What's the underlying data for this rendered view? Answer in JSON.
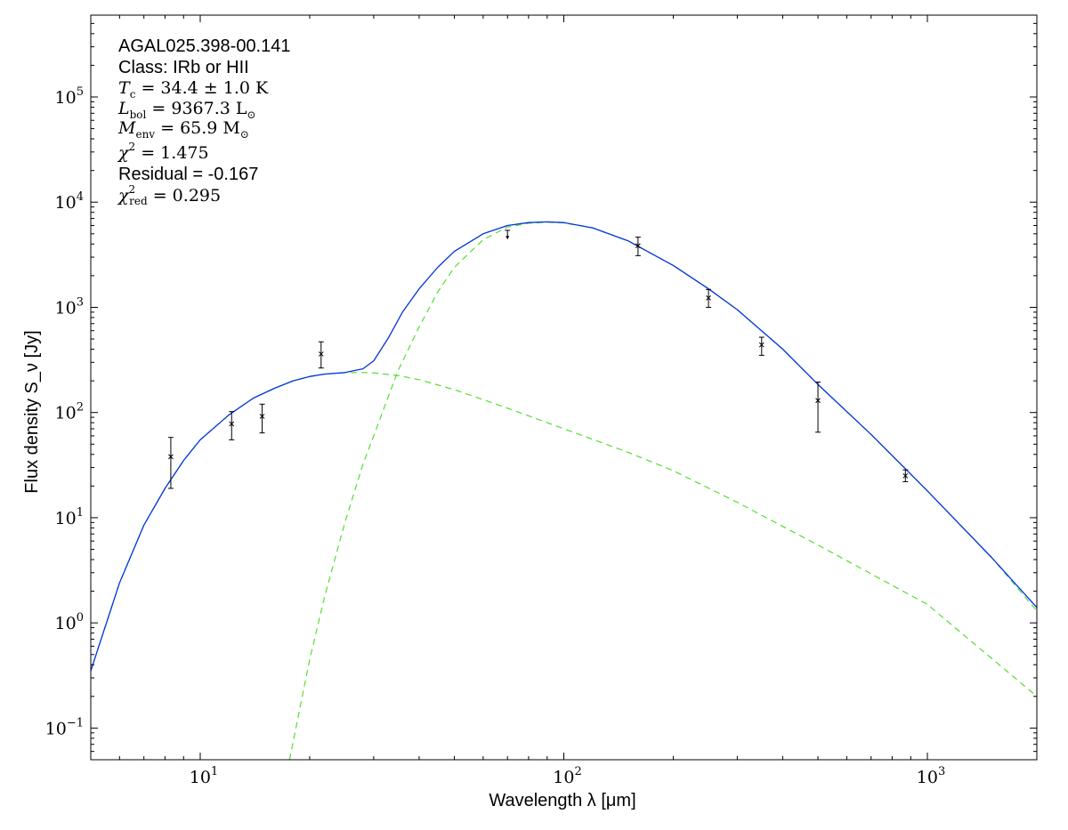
{
  "chart_data": {
    "type": "line",
    "x_scale": "log",
    "y_scale": "log",
    "xlim": [
      5,
      2000
    ],
    "ylim": [
      0.05,
      600000
    ],
    "xlabel": "Wavelength λ [μm]",
    "ylabel": "Flux density S_ν [Jy]",
    "grid": false,
    "x_ticks": [
      {
        "base": "10",
        "exp": "1",
        "value": 10
      },
      {
        "base": "10",
        "exp": "2",
        "value": 100
      },
      {
        "base": "10",
        "exp": "3",
        "value": 1000
      }
    ],
    "y_ticks": [
      {
        "base": "10",
        "exp": "−1",
        "value": 0.1
      },
      {
        "base": "10",
        "exp": "0",
        "value": 1
      },
      {
        "base": "10",
        "exp": "1",
        "value": 10
      },
      {
        "base": "10",
        "exp": "2",
        "value": 100
      },
      {
        "base": "10",
        "exp": "3",
        "value": 1000
      },
      {
        "base": "10",
        "exp": "4",
        "value": 10000
      },
      {
        "base": "10",
        "exp": "5",
        "value": 100000
      }
    ],
    "annotations": {
      "source": "AGAL025.398-00.141",
      "class_line": "Class: IRb or HII",
      "tc": {
        "sym": "T",
        "sub": "c",
        "text": " = 34.4 ± 1.0 K"
      },
      "lbol": {
        "sym": "L",
        "sub": "bol",
        "text": " = 9367.3 L",
        "sub2": "⊙"
      },
      "menv": {
        "sym": "M",
        "sub": "env",
        "text": " = 65.9 M",
        "sub2": "⊙"
      },
      "chi2": {
        "sym": "χ",
        "sup": "2",
        "text": " = 1.475"
      },
      "residual": "Residual = -0.167",
      "chi2red": {
        "sym": "χ",
        "sup": "2",
        "sub": "red",
        "text": " = 0.295"
      }
    },
    "colors": {
      "total": "#0033dd",
      "components": "#55dd33",
      "points": "#000000"
    },
    "series": [
      {
        "style": "solid",
        "x": [
          5,
          6,
          7,
          8,
          9,
          10,
          12,
          14,
          16,
          18,
          20,
          22,
          25,
          28,
          30,
          33,
          36,
          40,
          45,
          50,
          60,
          70,
          80,
          90,
          100,
          120,
          150,
          200,
          250,
          300,
          400,
          500,
          700,
          1000,
          1500,
          2000
        ],
        "y": [
          0.35,
          2.4,
          8.5,
          19,
          35,
          55,
          95,
          137,
          170,
          200,
          220,
          232,
          240,
          260,
          310,
          520,
          900,
          1500,
          2400,
          3400,
          5000,
          6000,
          6400,
          6500,
          6400,
          5700,
          4300,
          2500,
          1500,
          950,
          400,
          185,
          62,
          18,
          4.2,
          1.4
        ]
      },
      {
        "style": "dashed",
        "x": [
          5,
          6,
          7,
          8,
          9,
          10,
          12,
          14,
          16,
          18,
          20,
          22,
          25,
          28,
          30,
          35,
          40,
          50,
          70,
          100,
          150,
          200,
          300,
          500,
          1000,
          2000
        ],
        "y": [
          0.35,
          2.4,
          8.5,
          19,
          35,
          55,
          95,
          137,
          170,
          200,
          220,
          232,
          240,
          240,
          238,
          225,
          205,
          165,
          110,
          70,
          42,
          28,
          14,
          5.5,
          1.5,
          0.2
        ]
      },
      {
        "style": "dashed",
        "x": [
          17.6,
          20,
          22,
          25,
          28,
          30,
          35,
          40,
          45,
          50,
          60,
          70,
          80,
          90,
          100,
          120,
          150,
          200,
          250,
          300,
          400,
          500,
          700,
          1000,
          1500,
          2000
        ],
        "y": [
          0.05,
          0.45,
          1.8,
          9,
          32,
          60,
          250,
          650,
          1400,
          2400,
          4400,
          5800,
          6300,
          6450,
          6350,
          5700,
          4300,
          2500,
          1500,
          950,
          400,
          185,
          62,
          18,
          4.2,
          1.3
        ]
      }
    ],
    "points": [
      {
        "x": 8.3,
        "y": 38,
        "ylo": 19,
        "yhi": 58
      },
      {
        "x": 12.2,
        "y": 78,
        "ylo": 55,
        "yhi": 102
      },
      {
        "x": 14.8,
        "y": 92,
        "ylo": 64,
        "yhi": 120
      },
      {
        "x": 21.5,
        "y": 360,
        "ylo": 265,
        "yhi": 470
      },
      {
        "x": 160,
        "y": 3850,
        "ylo": 3100,
        "yhi": 4650
      },
      {
        "x": 250,
        "y": 1230,
        "ylo": 1000,
        "yhi": 1480
      },
      {
        "x": 350,
        "y": 440,
        "ylo": 350,
        "yhi": 520
      },
      {
        "x": 500,
        "y": 130,
        "ylo": 65,
        "yhi": 195
      },
      {
        "x": 870,
        "y": 25,
        "ylo": 22,
        "yhi": 28.5
      }
    ],
    "upper_limits": [
      {
        "x": 70,
        "y": 5400,
        "ymin": 4500
      }
    ]
  }
}
